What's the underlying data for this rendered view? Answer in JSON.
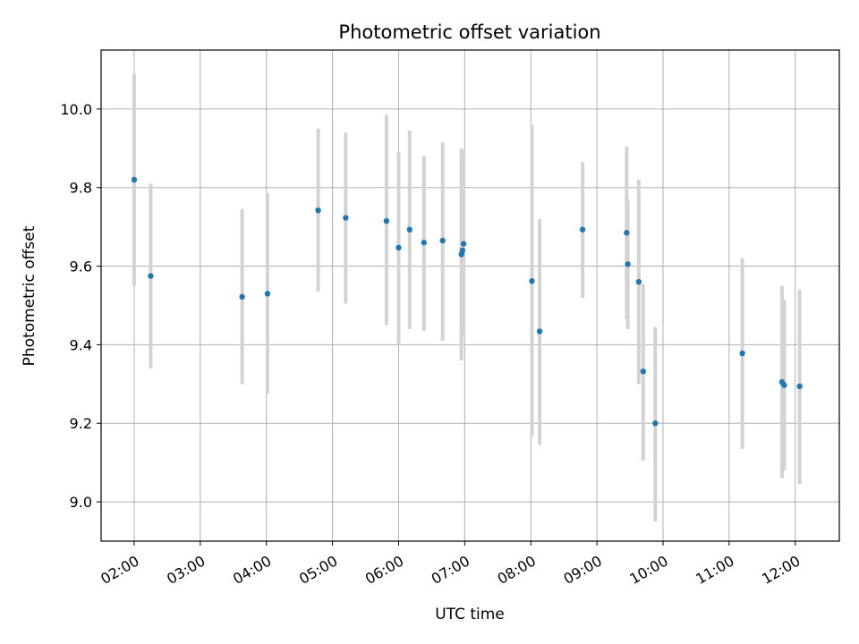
{
  "chart_data": {
    "type": "scatter",
    "title": "Photometric offset variation",
    "xlabel": "UTC time",
    "ylabel": "Photometric offset",
    "xlim": [
      "01:30",
      "12:40"
    ],
    "ylim": [
      8.9,
      10.15
    ],
    "x_ticks": [
      "02:00",
      "03:00",
      "04:00",
      "05:00",
      "06:00",
      "07:00",
      "08:00",
      "09:00",
      "10:00",
      "11:00",
      "12:00"
    ],
    "y_ticks": [
      "9.0",
      "9.2",
      "9.4",
      "9.6",
      "9.8",
      "10.0"
    ],
    "grid": true,
    "point_color": "#1f77b4",
    "errorbar_color": "#d3d3d3",
    "points": [
      {
        "x": "02:00",
        "y": 9.82,
        "ylow": 9.55,
        "yhigh": 10.09
      },
      {
        "x": "02:15",
        "y": 9.575,
        "ylow": 9.34,
        "yhigh": 9.81
      },
      {
        "x": "03:38",
        "y": 9.522,
        "ylow": 9.3,
        "yhigh": 9.745
      },
      {
        "x": "04:01",
        "y": 9.53,
        "ylow": 9.275,
        "yhigh": 9.785
      },
      {
        "x": "04:47",
        "y": 9.742,
        "ylow": 9.535,
        "yhigh": 9.95
      },
      {
        "x": "05:12",
        "y": 9.723,
        "ylow": 9.505,
        "yhigh": 9.94
      },
      {
        "x": "05:49",
        "y": 9.715,
        "ylow": 9.45,
        "yhigh": 9.985
      },
      {
        "x": "06:00",
        "y": 9.647,
        "ylow": 9.4,
        "yhigh": 9.89
      },
      {
        "x": "06:10",
        "y": 9.693,
        "ylow": 9.44,
        "yhigh": 9.945
      },
      {
        "x": "06:23",
        "y": 9.66,
        "ylow": 9.435,
        "yhigh": 9.88
      },
      {
        "x": "06:40",
        "y": 9.665,
        "ylow": 9.41,
        "yhigh": 9.915
      },
      {
        "x": "06:57",
        "y": 9.63,
        "ylow": 9.36,
        "yhigh": 9.9
      },
      {
        "x": "06:58",
        "y": 9.64,
        "ylow": 9.43,
        "yhigh": 9.87
      },
      {
        "x": "06:59",
        "y": 9.657,
        "ylow": 9.42,
        "yhigh": 9.895
      },
      {
        "x": "08:01",
        "y": 9.562,
        "ylow": 9.165,
        "yhigh": 9.96
      },
      {
        "x": "08:08",
        "y": 9.434,
        "ylow": 9.145,
        "yhigh": 9.72
      },
      {
        "x": "08:47",
        "y": 9.693,
        "ylow": 9.52,
        "yhigh": 9.865
      },
      {
        "x": "09:27",
        "y": 9.685,
        "ylow": 9.465,
        "yhigh": 9.905
      },
      {
        "x": "09:28",
        "y": 9.605,
        "ylow": 9.44,
        "yhigh": 9.77
      },
      {
        "x": "09:38",
        "y": 9.56,
        "ylow": 9.3,
        "yhigh": 9.82
      },
      {
        "x": "09:42",
        "y": 9.332,
        "ylow": 9.105,
        "yhigh": 9.555
      },
      {
        "x": "09:53",
        "y": 9.2,
        "ylow": 8.95,
        "yhigh": 9.445
      },
      {
        "x": "11:12",
        "y": 9.378,
        "ylow": 9.135,
        "yhigh": 9.62
      },
      {
        "x": "11:48",
        "y": 9.305,
        "ylow": 9.06,
        "yhigh": 9.55
      },
      {
        "x": "11:50",
        "y": 9.297,
        "ylow": 9.08,
        "yhigh": 9.515
      },
      {
        "x": "12:04",
        "y": 9.294,
        "ylow": 9.045,
        "yhigh": 9.54
      }
    ]
  }
}
